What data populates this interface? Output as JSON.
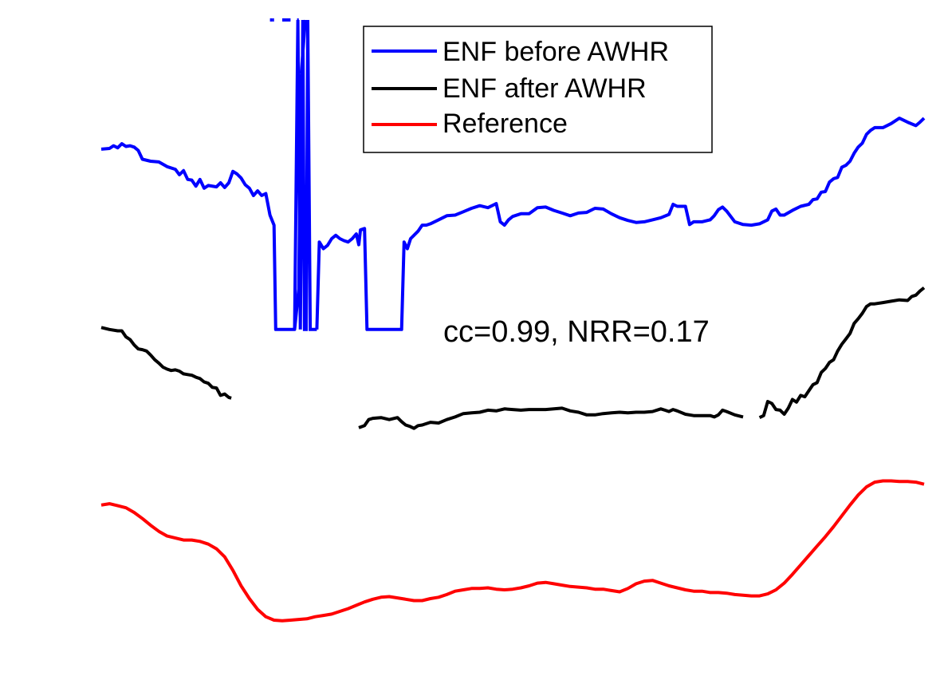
{
  "chart_data": {
    "type": "line",
    "title": "",
    "xlabel": "",
    "ylabel": "",
    "axes_visible": false,
    "grid": false,
    "legend_position": "top-center",
    "xlim": [
      0,
      100
    ],
    "ylim": [
      0,
      100
    ],
    "annotation": "cc=0.99, NRR=0.17",
    "series": [
      {
        "name": "ENF before AWHR",
        "color": "#0000ff",
        "segments": [
          [
            [
              0,
              80.8
            ],
            [
              1,
              80.9
            ],
            [
              1.5,
              81.3
            ],
            [
              2,
              81.0
            ],
            [
              2.5,
              81.6
            ],
            [
              3,
              81.2
            ],
            [
              3.5,
              81.3
            ],
            [
              4,
              81.1
            ],
            [
              4.5,
              80.6
            ],
            [
              5,
              79.3
            ],
            [
              6,
              79.0
            ],
            [
              7,
              78.9
            ],
            [
              8,
              78.2
            ],
            [
              9,
              77.8
            ],
            [
              9.5,
              77.0
            ],
            [
              10,
              77.6
            ],
            [
              10.5,
              76.3
            ],
            [
              11,
              76.2
            ],
            [
              11.5,
              75.3
            ],
            [
              12,
              76.3
            ],
            [
              12.5,
              75.0
            ],
            [
              13,
              75.4
            ],
            [
              14,
              75.2
            ],
            [
              14.5,
              75.8
            ],
            [
              15,
              75.1
            ],
            [
              15.5,
              75.8
            ],
            [
              16,
              77.5
            ],
            [
              16.5,
              77.1
            ],
            [
              17,
              76.5
            ],
            [
              17.5,
              75.5
            ],
            [
              18,
              75.0
            ],
            [
              18.5,
              73.9
            ],
            [
              19,
              74.6
            ],
            [
              19.5,
              73.9
            ],
            [
              20,
              74.2
            ],
            [
              20.5,
              71.0
            ],
            [
              21,
              69.5
            ],
            [
              21.2,
              54.0
            ],
            [
              23.5,
              54.0
            ],
            [
              24,
              60.0
            ],
            [
              24.3,
              92.0
            ]
          ],
          [
            [
              24.3,
              92.0
            ],
            [
              24.8,
              100.0
            ]
          ],
          [
            [
              20.5,
              100.0
            ],
            [
              20.8,
              100.0
            ]
          ],
          [
            [
              20.8,
              100.0
            ],
            [
              21.0,
              100.0
            ]
          ],
          [
            [
              22.0,
              100.0
            ],
            [
              23.0,
              100.0
            ]
          ],
          [
            [
              23.8,
              100.0
            ],
            [
              24.0,
              100.0
            ]
          ],
          [
            [
              20.0,
              100.0
            ],
            [
              20.0,
              100.0
            ]
          ]
        ]
      },
      {
        "name": "ENF after AWHR",
        "color": "#000000",
        "segments": [
          [
            [
              0,
              54.3
            ],
            [
              1,
              54.0
            ],
            [
              2,
              53.8
            ],
            [
              2.5,
              53.8
            ],
            [
              3,
              52.9
            ],
            [
              3.5,
              52.5
            ],
            [
              4,
              51.7
            ],
            [
              4.5,
              51.1
            ],
            [
              5,
              51.0
            ],
            [
              5.5,
              50.8
            ],
            [
              6,
              50.2
            ],
            [
              6.5,
              49.5
            ],
            [
              7,
              49.0
            ],
            [
              7.5,
              48.4
            ],
            [
              8,
              48.1
            ],
            [
              8.5,
              47.9
            ],
            [
              9,
              48.0
            ],
            [
              9.5,
              47.8
            ],
            [
              10,
              47.4
            ],
            [
              10.5,
              47.3
            ],
            [
              11,
              47.2
            ],
            [
              11.5,
              46.9
            ],
            [
              12,
              46.7
            ],
            [
              12.5,
              46.2
            ],
            [
              13,
              46.0
            ],
            [
              13.5,
              45.4
            ],
            [
              14,
              45.3
            ],
            [
              14.5,
              44.2
            ],
            [
              15,
              44.4
            ],
            [
              15.5,
              43.9
            ],
            [
              15.8,
              43.8
            ]
          ],
          [
            [
              31.3,
              39.4
            ],
            [
              32,
              39.7
            ],
            [
              32.5,
              40.6
            ],
            [
              33,
              40.8
            ],
            [
              34,
              40.9
            ],
            [
              35,
              40.6
            ],
            [
              36,
              40.9
            ],
            [
              36.5,
              40.3
            ],
            [
              37,
              39.8
            ],
            [
              37.5,
              39.6
            ],
            [
              38,
              39.3
            ],
            [
              38.5,
              39.7
            ],
            [
              39,
              39.8
            ],
            [
              40,
              40.2
            ],
            [
              41,
              40.1
            ],
            [
              42,
              40.6
            ],
            [
              43,
              41.0
            ],
            [
              44,
              41.5
            ],
            [
              45,
              41.6
            ],
            [
              46,
              41.7
            ],
            [
              47,
              42.0
            ],
            [
              48,
              41.9
            ],
            [
              49,
              42.2
            ],
            [
              50,
              42.1
            ],
            [
              51,
              42.0
            ],
            [
              52,
              42.1
            ],
            [
              53,
              42.1
            ],
            [
              54,
              42.1
            ],
            [
              55,
              42.2
            ],
            [
              56,
              42.3
            ],
            [
              57,
              41.9
            ],
            [
              58,
              41.7
            ],
            [
              59,
              41.3
            ],
            [
              60,
              41.3
            ],
            [
              61,
              41.5
            ],
            [
              62,
              41.6
            ],
            [
              63,
              41.7
            ],
            [
              64,
              41.6
            ],
            [
              65,
              41.7
            ],
            [
              66,
              41.7
            ],
            [
              67,
              41.8
            ],
            [
              68,
              42.2
            ],
            [
              68.5,
              42.0
            ],
            [
              69,
              41.8
            ],
            [
              69.5,
              42.1
            ],
            [
              70,
              41.9
            ],
            [
              71,
              41.4
            ],
            [
              72,
              41.2
            ],
            [
              73,
              41.2
            ],
            [
              74,
              41.2
            ],
            [
              74.5,
              41.0
            ],
            [
              75,
              41.3
            ],
            [
              75.5,
              42.0
            ],
            [
              76,
              41.8
            ],
            [
              77,
              41.3
            ],
            [
              78,
              41.0
            ]
          ],
          [
            [
              80.0,
              40.9
            ],
            [
              80.5,
              41.2
            ],
            [
              81,
              43.3
            ],
            [
              81.5,
              43.0
            ],
            [
              82,
              42.1
            ],
            [
              82.5,
              42.0
            ],
            [
              83,
              41.4
            ],
            [
              83.5,
              42.3
            ],
            [
              84,
              43.6
            ],
            [
              84.5,
              43.2
            ],
            [
              85,
              44.2
            ],
            [
              85.5,
              44.0
            ],
            [
              86,
              44.9
            ],
            [
              86.5,
              45.8
            ],
            [
              87,
              46.1
            ],
            [
              87.5,
              47.6
            ],
            [
              88,
              48.2
            ],
            [
              88.5,
              49.1
            ],
            [
              89,
              49.5
            ],
            [
              89.5,
              50.8
            ],
            [
              90,
              51.8
            ],
            [
              90.5,
              52.6
            ],
            [
              91,
              53.4
            ],
            [
              91.5,
              54.9
            ],
            [
              92,
              55.6
            ],
            [
              92.5,
              56.4
            ],
            [
              93,
              57.4
            ],
            [
              93.5,
              57.8
            ],
            [
              94,
              57.8
            ],
            [
              95,
              58.0
            ],
            [
              96,
              58.2
            ],
            [
              97,
              58.4
            ],
            [
              98,
              58.3
            ],
            [
              98.5,
              58.9
            ],
            [
              99,
              59.1
            ],
            [
              99.5,
              59.7
            ],
            [
              100,
              60.2
            ]
          ]
        ]
      },
      {
        "name": "Reference",
        "color": "#ff0000",
        "segments": [
          [
            [
              0,
              27.9
            ],
            [
              1,
              28.1
            ],
            [
              2,
              27.8
            ],
            [
              3,
              27.5
            ],
            [
              4,
              26.8
            ],
            [
              5,
              25.9
            ],
            [
              6,
              24.9
            ],
            [
              7,
              24.0
            ],
            [
              8,
              23.3
            ],
            [
              9,
              23.0
            ],
            [
              10,
              22.7
            ],
            [
              11,
              22.7
            ],
            [
              12,
              22.5
            ],
            [
              13,
              22.1
            ],
            [
              14,
              21.4
            ],
            [
              15,
              20.2
            ],
            [
              16,
              18.2
            ],
            [
              17,
              15.9
            ],
            [
              18,
              14.0
            ],
            [
              19,
              12.4
            ],
            [
              20,
              11.3
            ],
            [
              21,
              10.8
            ],
            [
              22,
              10.7
            ],
            [
              23,
              10.8
            ],
            [
              24,
              10.9
            ],
            [
              25,
              11.0
            ],
            [
              26,
              11.3
            ],
            [
              27,
              11.5
            ],
            [
              28,
              11.7
            ],
            [
              29,
              12.1
            ],
            [
              30,
              12.5
            ],
            [
              31,
              13.0
            ],
            [
              32,
              13.5
            ],
            [
              33,
              13.9
            ],
            [
              34,
              14.2
            ],
            [
              35,
              14.3
            ],
            [
              36,
              14.1
            ],
            [
              37,
              13.9
            ],
            [
              38,
              13.7
            ],
            [
              39,
              13.7
            ],
            [
              40,
              14.0
            ],
            [
              41,
              14.2
            ],
            [
              42,
              14.6
            ],
            [
              43,
              15.1
            ],
            [
              44,
              15.3
            ],
            [
              45,
              15.5
            ],
            [
              46,
              15.5
            ],
            [
              47,
              15.6
            ],
            [
              48,
              15.4
            ],
            [
              49,
              15.3
            ],
            [
              50,
              15.4
            ],
            [
              51,
              15.6
            ],
            [
              52,
              15.9
            ],
            [
              53,
              16.3
            ],
            [
              54,
              16.4
            ],
            [
              55,
              16.2
            ],
            [
              56,
              16.0
            ],
            [
              57,
              15.8
            ],
            [
              58,
              15.7
            ],
            [
              59,
              15.6
            ],
            [
              60,
              15.4
            ],
            [
              61,
              15.4
            ],
            [
              62,
              15.2
            ],
            [
              63,
              15.0
            ],
            [
              64,
              15.5
            ],
            [
              65,
              16.2
            ],
            [
              66,
              16.6
            ],
            [
              67,
              16.7
            ],
            [
              68,
              16.3
            ],
            [
              69,
              15.9
            ],
            [
              70,
              15.6
            ],
            [
              71,
              15.3
            ],
            [
              72,
              15.1
            ],
            [
              73,
              15.1
            ],
            [
              74,
              14.9
            ],
            [
              75,
              14.9
            ],
            [
              76,
              14.8
            ],
            [
              77,
              14.6
            ],
            [
              78,
              14.5
            ],
            [
              79,
              14.4
            ],
            [
              80,
              14.4
            ],
            [
              81,
              14.7
            ],
            [
              82,
              15.3
            ],
            [
              83,
              16.3
            ],
            [
              84,
              17.6
            ],
            [
              85,
              19.0
            ],
            [
              86,
              20.4
            ],
            [
              87,
              21.8
            ],
            [
              88,
              23.2
            ],
            [
              89,
              24.7
            ],
            [
              90,
              26.3
            ],
            [
              91,
              27.9
            ],
            [
              92,
              29.4
            ],
            [
              93,
              30.6
            ],
            [
              94,
              31.3
            ],
            [
              95,
              31.5
            ],
            [
              96,
              31.5
            ],
            [
              97,
              31.4
            ],
            [
              98,
              31.4
            ],
            [
              99,
              31.3
            ],
            [
              100,
              31.0
            ]
          ]
        ]
      }
    ]
  }
}
